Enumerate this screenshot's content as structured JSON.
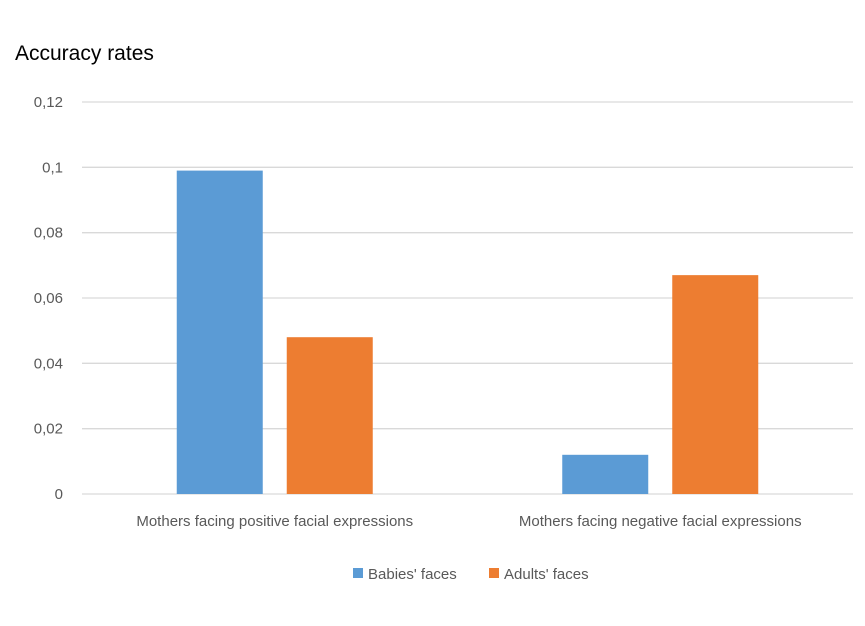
{
  "chart_data": {
    "type": "bar",
    "ylabel": "Accuracy rates",
    "categories": [
      "Mothers facing positive facial expressions",
      "Mothers facing negative facial expressions"
    ],
    "series": [
      {
        "name": "Babies' faces",
        "values": [
          0.099,
          0.012
        ],
        "color": "#5b9bd5"
      },
      {
        "name": "Adults' faces",
        "values": [
          0.048,
          0.067
        ],
        "color": "#ed7d31"
      }
    ],
    "ylim": [
      0,
      0.12
    ],
    "yticks": [
      "0",
      "0,02",
      "0,04",
      "0,06",
      "0,08",
      "0,1",
      "0,12"
    ],
    "grid": true,
    "legend": "bottom",
    "gridColor": "#d9d9d9"
  }
}
